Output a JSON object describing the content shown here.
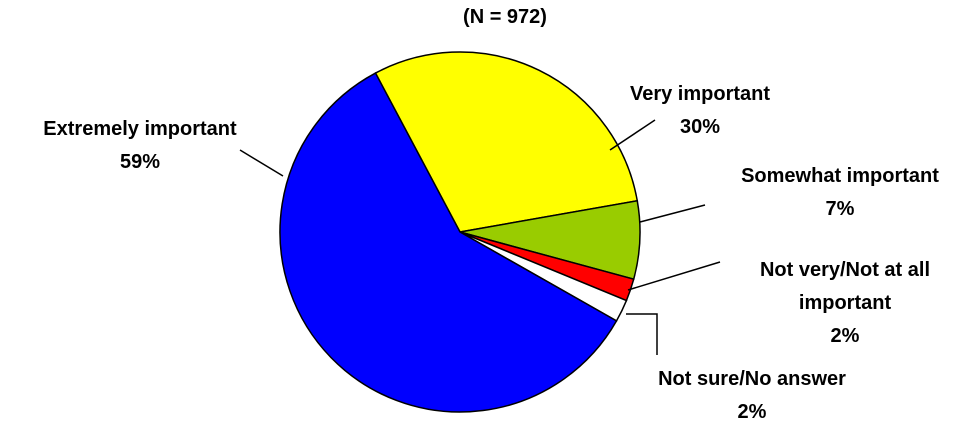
{
  "chart_data": {
    "type": "pie",
    "subtitle": "(N = 972)",
    "categories": [
      "Very important",
      "Somewhat important",
      "Not very/Not at all important",
      "Not sure/No answer",
      "Extremely important"
    ],
    "values": [
      30,
      7,
      2,
      2,
      59
    ],
    "value_labels": [
      "30%",
      "7%",
      "2%",
      "2%",
      "59%"
    ],
    "colors": [
      "#ffff00",
      "#99cc00",
      "#ff0000",
      "#ffffff",
      "#0000ff"
    ],
    "start_angle": 332
  }
}
